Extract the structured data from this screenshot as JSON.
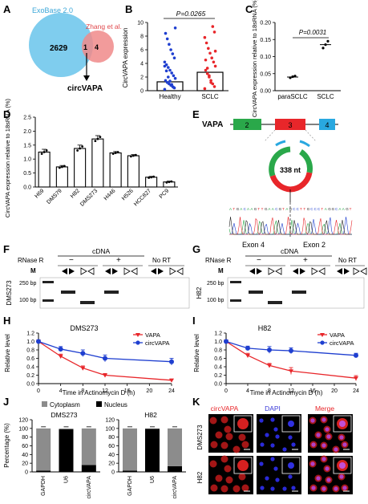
{
  "panel_letters": [
    "A",
    "B",
    "C",
    "D",
    "E",
    "F",
    "G",
    "H",
    "I",
    "J",
    "K"
  ],
  "venn": {
    "left_label": "ExoBase 2.0",
    "right_label": "Zhang et al.",
    "left_count": "2629",
    "overlap_count": "1",
    "right_count": "4",
    "arrow_label": "circVAPA",
    "left_color": "#7fcdee",
    "right_color": "#f08a8a"
  },
  "panel_e": {
    "gene": "VAPA",
    "exons": [
      {
        "label": "2",
        "color": "#2aa84a"
      },
      {
        "label": "3",
        "color": "#e8262a"
      },
      {
        "label": "4",
        "color": "#29a8e0"
      }
    ],
    "circle_label": "338 nt",
    "junction_left": "Exon 4",
    "junction_right": "Exon 2"
  },
  "gels": [
    {
      "cell": "DMS273",
      "rnase": "RNase R",
      "cdna": "cDNA",
      "minus": "−",
      "plus": "+",
      "nort": "No RT",
      "marker": "M",
      "bp_labels": [
        "250 bp",
        "100 bp"
      ]
    },
    {
      "cell": "H82",
      "rnase": "RNase R",
      "cdna": "cDNA",
      "minus": "−",
      "plus": "+",
      "nort": "No RT",
      "marker": "M",
      "bp_labels": [
        "250 bp",
        "100 bp"
      ]
    }
  ],
  "panel_k": {
    "columns": [
      "circVAPA",
      "DAPI",
      "Merge"
    ],
    "column_colors": [
      "#e8262a",
      "#3a3ad8",
      "#e8262a"
    ],
    "rows": [
      "DMS273",
      "H82"
    ]
  },
  "chart_data": [
    {
      "panel": "B",
      "type": "bar",
      "categories": [
        "Healthy",
        "SCLC"
      ],
      "values": [
        1.3,
        2.7
      ],
      "ylabel": "CircVAPA expression",
      "ylim": [
        0,
        10
      ],
      "yticks": [
        0,
        2,
        4,
        6,
        8,
        10
      ],
      "annotation": "P=0.0265",
      "point_colors": [
        "#1f3fd0",
        "#e8262a"
      ]
    },
    {
      "panel": "C",
      "type": "scatter",
      "categories": [
        "paraSCLC",
        "SCLC"
      ],
      "values": [
        0.04,
        0.135
      ],
      "points": [
        [
          0.038,
          0.041,
          0.043
        ],
        [
          0.125,
          0.135,
          0.145
        ]
      ],
      "ylabel": "CircVAPA expression relative to 18sRNA (%)",
      "ylim": [
        0,
        0.2
      ],
      "yticks": [
        "0.00",
        "0.05",
        "0.10",
        "0.15",
        "0.20"
      ],
      "annotation": "P=0.0031"
    },
    {
      "panel": "D",
      "type": "bar",
      "categories": [
        "H69",
        "DMS79",
        "H82",
        "DMS273",
        "H446",
        "H526",
        "HCC827",
        "PC9"
      ],
      "values": [
        1.25,
        0.72,
        1.38,
        1.72,
        1.22,
        1.12,
        0.35,
        0.18
      ],
      "errors": [
        0.1,
        0.05,
        0.12,
        0.12,
        0.05,
        0.04,
        0.03,
        0.03
      ],
      "ylabel": "CircVAPA expression relative to 18sRNA (%)",
      "ylim": [
        0,
        2.5
      ],
      "yticks": [
        "0.0",
        "0.5",
        "1.0",
        "1.5",
        "2.0",
        "2.5"
      ]
    },
    {
      "panel": "H",
      "type": "line",
      "title": "DMS273",
      "x": [
        0,
        4,
        8,
        12,
        24
      ],
      "series": [
        {
          "name": "VAPA",
          "color": "#e8262a",
          "values": [
            1.0,
            0.65,
            0.37,
            0.2,
            0.08
          ],
          "errors": [
            0.03,
            0.05,
            0.05,
            0.04,
            0.03
          ]
        },
        {
          "name": "circVAPA",
          "color": "#1f3fd0",
          "values": [
            1.0,
            0.82,
            0.72,
            0.6,
            0.52
          ],
          "errors": [
            0.04,
            0.06,
            0.08,
            0.08,
            0.08
          ]
        }
      ],
      "xlabel": "Time in Actinomycin D (h)",
      "ylabel": "Relative level",
      "ylim": [
        0,
        1.2
      ],
      "xticks": [
        0,
        4,
        8,
        12,
        16,
        20,
        24
      ],
      "yticks": [
        "0.0",
        "0.2",
        "0.4",
        "0.6",
        "0.8",
        "1.0",
        "1.2"
      ]
    },
    {
      "panel": "I",
      "type": "line",
      "title": "H82",
      "x": [
        0,
        4,
        8,
        12,
        24
      ],
      "series": [
        {
          "name": "VAPA",
          "color": "#e8262a",
          "values": [
            1.0,
            0.67,
            0.43,
            0.3,
            0.13
          ],
          "errors": [
            0.03,
            0.05,
            0.05,
            0.08,
            0.06
          ]
        },
        {
          "name": "circVAPA",
          "color": "#1f3fd0",
          "values": [
            1.0,
            0.84,
            0.8,
            0.78,
            0.67
          ],
          "errors": [
            0.04,
            0.05,
            0.08,
            0.07,
            0.05
          ]
        }
      ],
      "xlabel": "Time in Actinomycin D (h)",
      "ylabel": "Relative level",
      "ylim": [
        0,
        1.2
      ],
      "xticks": [
        0,
        4,
        8,
        12,
        16,
        20,
        24
      ],
      "yticks": [
        "0.0",
        "0.2",
        "0.4",
        "0.6",
        "0.8",
        "1.0",
        "1.2"
      ]
    },
    {
      "panel": "J",
      "type": "bar",
      "subtitles": [
        "DMS273",
        "H82"
      ],
      "categories": [
        "GAPDH",
        "U6",
        "circVAPA"
      ],
      "series": [
        {
          "name": "Cytoplasm",
          "color": "#8c8c8c",
          "values": [
            [
              97,
              2,
              84
            ],
            [
              97,
              1,
              87
            ]
          ]
        },
        {
          "name": "Nucleus",
          "color": "#000000",
          "values": [
            [
              3,
              98,
              16
            ],
            [
              3,
              99,
              13
            ]
          ]
        }
      ],
      "ylabel": "Percentage (%)",
      "ylim": [
        0,
        120
      ],
      "yticks": [
        0,
        20,
        40,
        60,
        80,
        100,
        120
      ]
    }
  ]
}
